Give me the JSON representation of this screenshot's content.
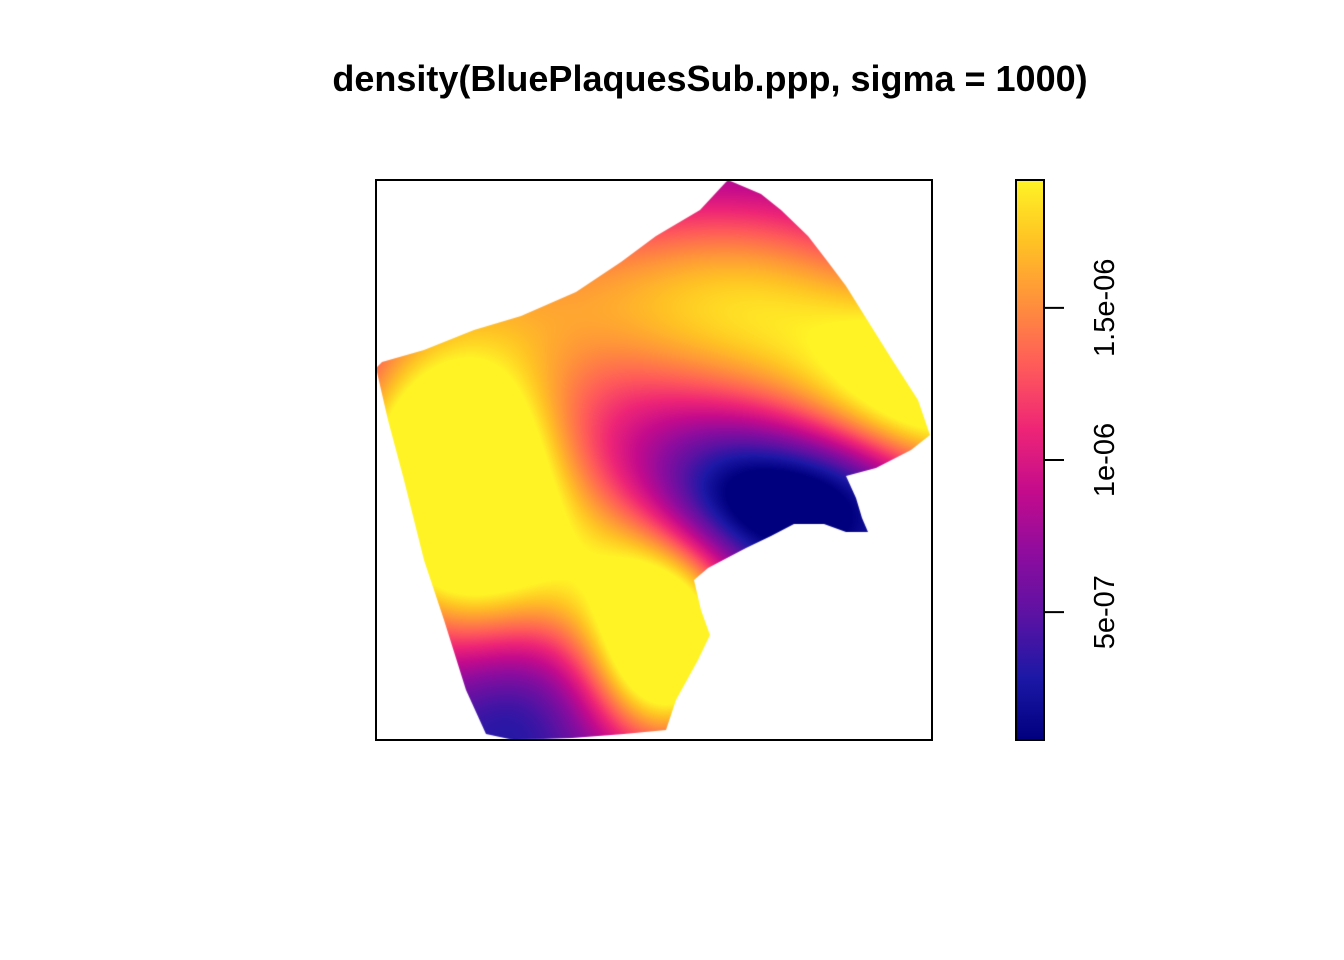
{
  "chart_data": {
    "type": "heatmap",
    "title": "density(BluePlaquesSub.ppp, sigma = 1000)",
    "colorbar": {
      "ticks": [
        {
          "value": 5e-07,
          "label": "5e-07"
        },
        {
          "value": 1e-06,
          "label": "1e-06"
        },
        {
          "value": 1.5e-06,
          "label": "1.5e-06"
        }
      ],
      "range": [
        8e-08,
        1.92e-06
      ],
      "palette": [
        "#00007f",
        "#1c18a6",
        "#5b12a3",
        "#8e0c9e",
        "#c40b8c",
        "#ee2576",
        "#ff5a5a",
        "#ff8f3c",
        "#ffc224",
        "#fff325"
      ]
    },
    "legend_position": "right",
    "axes_visible": false,
    "density_hotspots": [
      {
        "region": "west",
        "level": 1.9e-06
      },
      {
        "region": "south",
        "level": 1.62e-06
      },
      {
        "region": "east-edge",
        "level": 1.38e-06
      },
      {
        "region": "center-east (low)",
        "level": 1e-07
      },
      {
        "region": "south-west corner (low)",
        "level": 2.5e-07
      }
    ]
  }
}
